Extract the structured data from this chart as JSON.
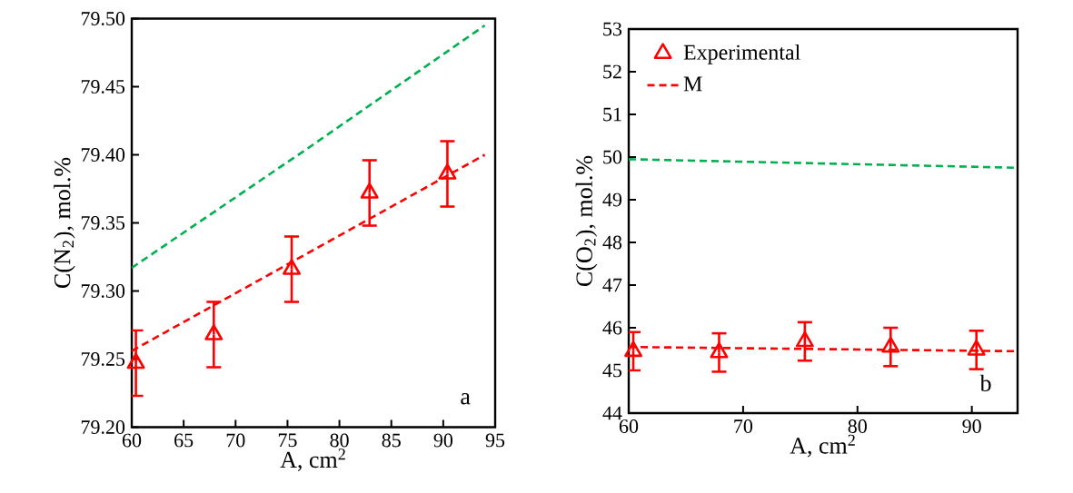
{
  "chart_data": [
    {
      "type": "scatter",
      "xlabel": "A, cm$^{2}$",
      "ylabel": "C(N$_{2}$), mol.%",
      "annotations": [
        "a"
      ],
      "xlim": [
        60,
        95
      ],
      "xticks": [
        60,
        65,
        70,
        75,
        80,
        85,
        90,
        95
      ],
      "ylim": [
        79.2,
        79.5
      ],
      "yticks": [
        {
          "value": 79.2,
          "label": "79.20"
        },
        {
          "value": 79.25,
          "label": "79.25"
        },
        {
          "value": 79.3,
          "label": "79.30"
        },
        {
          "value": 79.35,
          "label": "79.35"
        },
        {
          "value": 79.4,
          "label": "79.40"
        },
        {
          "value": 79.45,
          "label": "79.45"
        },
        {
          "value": 79.5,
          "label": "79.50"
        }
      ],
      "grid": false,
      "legend": false,
      "series": [
        {
          "type": "scatter",
          "color": "#ff0000",
          "marker": "triangle",
          "x": [
            60.4,
            67.9,
            75.4,
            82.9,
            90.4
          ],
          "values": [
            79.247,
            79.268,
            79.316,
            79.372,
            79.386
          ],
          "errors": [
            0.024,
            0.024,
            0.024,
            0.024,
            0.024
          ]
        },
        {
          "type": "line",
          "color": "#ff0000",
          "line_style": "dashed",
          "x": [
            60,
            94
          ],
          "values": [
            79.256,
            79.4
          ]
        },
        {
          "type": "line",
          "color": "#00b050",
          "line_style": "dashed",
          "x": [
            60,
            77,
            94
          ],
          "values": [
            79.317,
            79.405,
            79.495
          ]
        }
      ]
    },
    {
      "type": "scatter",
      "xlabel": "A, cm$^{2}$",
      "ylabel": "C(O$_{2}$), mol.%",
      "annotations": [
        "b"
      ],
      "xlim": [
        60,
        94
      ],
      "xticks": [
        60,
        70,
        80,
        90
      ],
      "ylim": [
        44,
        53
      ],
      "yticks": [
        44,
        45,
        46,
        47,
        48,
        49,
        50,
        51,
        52,
        53
      ],
      "grid": false,
      "legend": "top left",
      "series": [
        {
          "type": "scatter",
          "name": "Experimental",
          "color": "#ff0000",
          "marker": "triangle",
          "x": [
            60.4,
            67.9,
            75.4,
            82.9,
            90.4
          ],
          "values": [
            45.45,
            45.42,
            45.68,
            45.55,
            45.48
          ],
          "errors": [
            0.45,
            0.45,
            0.45,
            0.45,
            0.45
          ]
        },
        {
          "type": "line",
          "name": "M",
          "color": "#ff0000",
          "line_style": "dashed",
          "x": [
            60,
            94
          ],
          "values": [
            45.55,
            45.45
          ]
        },
        {
          "type": "line",
          "color": "#00b050",
          "line_style": "dashed",
          "x": [
            60,
            94
          ],
          "values": [
            49.95,
            49.75
          ]
        }
      ]
    }
  ]
}
